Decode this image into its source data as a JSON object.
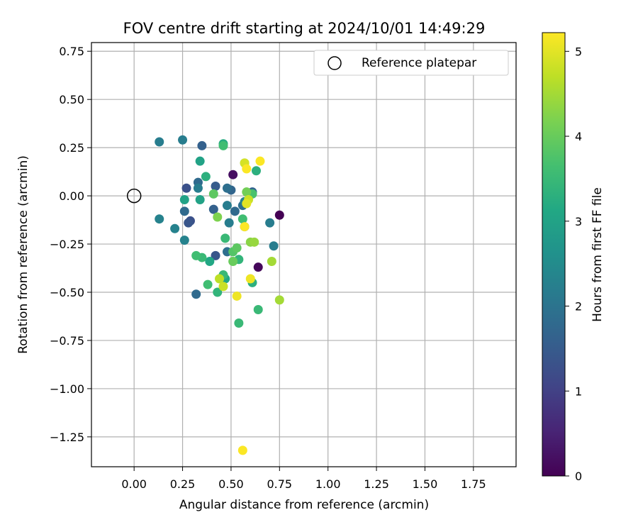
{
  "chart_data": {
    "type": "scatter",
    "title": "FOV centre drift starting at 2024/10/01 14:49:29",
    "xlabel": "Angular distance from reference (arcmin)",
    "ylabel": "Rotation from reference (arcmin)",
    "xlim": [
      -0.22,
      1.97
    ],
    "ylim": [
      -1.405,
      0.795
    ],
    "xticks": [
      "0.00",
      "0.25",
      "0.50",
      "0.75",
      "1.00",
      "1.25",
      "1.50",
      "1.75"
    ],
    "yticks": [
      "0.75",
      "0.50",
      "0.25",
      "0.00",
      "−0.25",
      "−0.50",
      "−0.75",
      "−1.00",
      "−1.25"
    ],
    "grid": true,
    "legend": {
      "position": "top-right",
      "entries": [
        {
          "label": "Reference platepar",
          "marker": "open-circle"
        }
      ]
    },
    "reference": {
      "x": 0.0,
      "y": 0.0
    },
    "colorbar": {
      "label": "Hours from first FF file",
      "range": [
        0,
        5.22
      ],
      "ticks": [
        "0",
        "1",
        "2",
        "3",
        "4",
        "5"
      ],
      "colormap": "viridis"
    },
    "points": [
      {
        "x": 0.75,
        "y": -0.1,
        "c": 0.0
      },
      {
        "x": 0.51,
        "y": 0.11,
        "c": 0.2
      },
      {
        "x": 0.64,
        "y": -0.37,
        "c": 0.1
      },
      {
        "x": 0.27,
        "y": 0.04,
        "c": 1.3
      },
      {
        "x": 0.29,
        "y": -0.13,
        "c": 1.3
      },
      {
        "x": 0.28,
        "y": -0.14,
        "c": 1.4
      },
      {
        "x": 0.42,
        "y": -0.31,
        "c": 1.4
      },
      {
        "x": 0.42,
        "y": 0.05,
        "c": 1.5
      },
      {
        "x": 0.35,
        "y": 0.26,
        "c": 1.6
      },
      {
        "x": 0.41,
        "y": -0.07,
        "c": 1.6
      },
      {
        "x": 0.5,
        "y": 0.03,
        "c": 1.7
      },
      {
        "x": 0.57,
        "y": -0.16,
        "c": 1.5
      },
      {
        "x": 0.61,
        "y": 0.02,
        "c": 1.7
      },
      {
        "x": 0.33,
        "y": 0.07,
        "c": 1.8
      },
      {
        "x": 0.26,
        "y": -0.08,
        "c": 1.8
      },
      {
        "x": 0.32,
        "y": -0.51,
        "c": 1.8
      },
      {
        "x": 0.48,
        "y": 0.04,
        "c": 1.9
      },
      {
        "x": 0.52,
        "y": -0.08,
        "c": 1.8
      },
      {
        "x": 0.48,
        "y": -0.29,
        "c": 1.9
      },
      {
        "x": 0.56,
        "y": -0.05,
        "c": 1.9
      },
      {
        "x": 0.25,
        "y": 0.29,
        "c": 2.2
      },
      {
        "x": 0.13,
        "y": 0.28,
        "c": 2.2
      },
      {
        "x": 0.13,
        "y": -0.12,
        "c": 2.3
      },
      {
        "x": 0.21,
        "y": -0.17,
        "c": 2.3
      },
      {
        "x": 0.26,
        "y": -0.23,
        "c": 2.3
      },
      {
        "x": 0.33,
        "y": 0.04,
        "c": 2.2
      },
      {
        "x": 0.48,
        "y": -0.05,
        "c": 2.2
      },
      {
        "x": 0.49,
        "y": -0.14,
        "c": 2.2
      },
      {
        "x": 0.7,
        "y": -0.14,
        "c": 2.2
      },
      {
        "x": 0.72,
        "y": -0.26,
        "c": 2.2
      },
      {
        "x": 0.57,
        "y": -0.03,
        "c": 2.3
      },
      {
        "x": 0.26,
        "y": -0.02,
        "c": 3.0
      },
      {
        "x": 0.34,
        "y": 0.18,
        "c": 3.0
      },
      {
        "x": 0.34,
        "y": -0.02,
        "c": 3.0
      },
      {
        "x": 0.39,
        "y": -0.34,
        "c": 3.1
      },
      {
        "x": 0.47,
        "y": -0.43,
        "c": 3.1
      },
      {
        "x": 0.46,
        "y": 0.27,
        "c": 3.2
      },
      {
        "x": 0.37,
        "y": 0.1,
        "c": 3.3
      },
      {
        "x": 0.63,
        "y": 0.13,
        "c": 3.3
      },
      {
        "x": 0.61,
        "y": -0.45,
        "c": 3.3
      },
      {
        "x": 0.54,
        "y": -0.33,
        "c": 3.4
      },
      {
        "x": 0.43,
        "y": -0.5,
        "c": 3.4
      },
      {
        "x": 0.46,
        "y": -0.41,
        "c": 3.5
      },
      {
        "x": 0.47,
        "y": -0.22,
        "c": 3.5
      },
      {
        "x": 0.35,
        "y": -0.32,
        "c": 3.5
      },
      {
        "x": 0.32,
        "y": -0.31,
        "c": 3.6
      },
      {
        "x": 0.38,
        "y": -0.46,
        "c": 3.6
      },
      {
        "x": 0.64,
        "y": -0.59,
        "c": 3.5
      },
      {
        "x": 0.54,
        "y": -0.66,
        "c": 3.5
      },
      {
        "x": 0.46,
        "y": 0.26,
        "c": 3.6
      },
      {
        "x": 0.56,
        "y": -0.12,
        "c": 3.6
      },
      {
        "x": 0.61,
        "y": 0.01,
        "c": 3.7
      },
      {
        "x": 0.51,
        "y": -0.29,
        "c": 3.8
      },
      {
        "x": 0.53,
        "y": -0.27,
        "c": 3.9
      },
      {
        "x": 0.41,
        "y": 0.01,
        "c": 3.9
      },
      {
        "x": 0.57,
        "y": 0.17,
        "c": 3.9
      },
      {
        "x": 0.51,
        "y": -0.34,
        "c": 4.0
      },
      {
        "x": 0.58,
        "y": 0.02,
        "c": 4.1
      },
      {
        "x": 0.43,
        "y": -0.11,
        "c": 4.2
      },
      {
        "x": 0.6,
        "y": -0.24,
        "c": 4.3
      },
      {
        "x": 0.62,
        "y": -0.24,
        "c": 4.4
      },
      {
        "x": 0.71,
        "y": -0.34,
        "c": 4.5
      },
      {
        "x": 0.75,
        "y": -0.54,
        "c": 4.5
      },
      {
        "x": 0.44,
        "y": -0.43,
        "c": 4.7
      },
      {
        "x": 0.46,
        "y": -0.47,
        "c": 4.8
      },
      {
        "x": 0.59,
        "y": -0.02,
        "c": 4.8
      },
      {
        "x": 0.57,
        "y": 0.17,
        "c": 4.9
      },
      {
        "x": 0.58,
        "y": -0.04,
        "c": 5.0
      },
      {
        "x": 0.53,
        "y": -0.52,
        "c": 5.1
      },
      {
        "x": 0.6,
        "y": -0.43,
        "c": 5.1
      },
      {
        "x": 0.57,
        "y": -0.16,
        "c": 5.2
      },
      {
        "x": 0.58,
        "y": 0.14,
        "c": 5.2
      },
      {
        "x": 0.65,
        "y": 0.18,
        "c": 5.2
      },
      {
        "x": 0.56,
        "y": -1.32,
        "c": 5.2
      }
    ]
  }
}
